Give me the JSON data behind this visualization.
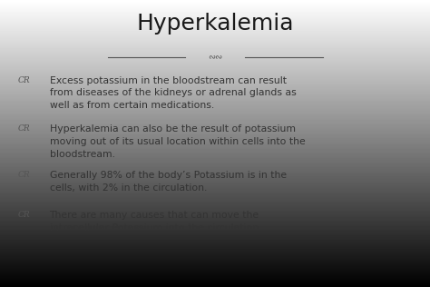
{
  "title": "Hyperkalemia",
  "title_fontsize": 18,
  "title_color": "#1a1a1a",
  "background_color": "#e8e8ec",
  "bullet_color": "#555555",
  "bullet_fontsize": 7.5,
  "text_color": "#333333",
  "text_fontsize": 7.8,
  "divider_color": "#555555",
  "bullets": [
    "Excess potassium in the bloodstream can result\nfrom diseases of the kidneys or adrenal glands as\nwell as from certain medications.",
    "Hyperkalemia can also be the result of potassium\nmoving out of its usual location within cells into the\nbloodstream.",
    "Generally 98% of the body’s Potassium is in the\ncells, with 2% in the circulation.",
    "There are many causes that can move the\nintracellular Potassium into the circulation."
  ]
}
